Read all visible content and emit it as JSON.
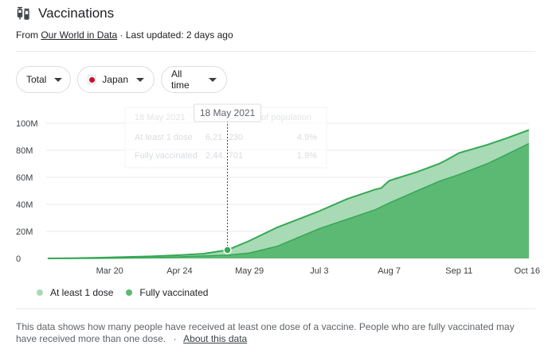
{
  "header": {
    "title": "Vaccinations",
    "source_prefix": "From",
    "source_link": "Our World in Data",
    "separator": "·",
    "last_updated": "Last updated: 2 days ago"
  },
  "filters": {
    "metric": "Total",
    "country": "Japan",
    "range": "All time"
  },
  "tooltip": {
    "date": "18 May 2021",
    "header_faded": "18 May 2021",
    "pct_header_faded": "of population",
    "rows": [
      {
        "label": "At least 1 dose",
        "value": "6,21‥230",
        "pct": "4.9%"
      },
      {
        "label": "Fully vaccinated",
        "value": "2,44‥701",
        "pct": "1.9%"
      }
    ]
  },
  "legend": {
    "dose1": "At least 1 dose",
    "full": "Fully vaccinated"
  },
  "footer": {
    "text": "This data shows how many people have received at least one dose of a vaccine. People who are fully vaccinated may have received more than one dose.",
    "separator": "·",
    "link": "About this data"
  },
  "colors": {
    "dose1_fill": "#a8dab5",
    "full_fill": "#5bb974",
    "line": "#34a853",
    "grid": "#e8eaed",
    "text_muted": "#5f6368"
  },
  "chart_data": {
    "type": "area",
    "ylim": [
      0,
      100000000
    ],
    "y_ticks": [
      {
        "label": "0",
        "value": 0
      },
      {
        "label": "20M",
        "value": 20000000
      },
      {
        "label": "40M",
        "value": 40000000
      },
      {
        "label": "60M",
        "value": 60000000
      },
      {
        "label": "80M",
        "value": 80000000
      },
      {
        "label": "100M",
        "value": 100000000
      }
    ],
    "xlim": [
      "2021-02-17",
      "2021-10-16"
    ],
    "x_ticks": [
      {
        "label": "Mar 20",
        "date": "2021-03-20"
      },
      {
        "label": "Apr 24",
        "date": "2021-04-24"
      },
      {
        "label": "May 29",
        "date": "2021-05-29"
      },
      {
        "label": "Jul 3",
        "date": "2021-07-03"
      },
      {
        "label": "Aug 7",
        "date": "2021-08-07"
      },
      {
        "label": "Sep 11",
        "date": "2021-09-11"
      },
      {
        "label": "Oct 16",
        "date": "2021-10-16"
      }
    ],
    "highlight": {
      "date": "2021-05-18",
      "value": 6210230
    },
    "series": [
      {
        "name": "At least 1 dose",
        "x": [
          "2021-02-17",
          "2021-03-01",
          "2021-03-20",
          "2021-04-10",
          "2021-04-24",
          "2021-05-06",
          "2021-05-18",
          "2021-05-29",
          "2021-06-12",
          "2021-07-03",
          "2021-07-17",
          "2021-07-31",
          "2021-08-03",
          "2021-08-07",
          "2021-08-21",
          "2021-09-01",
          "2021-09-05",
          "2021-09-11",
          "2021-09-25",
          "2021-10-05",
          "2021-10-16"
        ],
        "values": [
          0,
          200000,
          700000,
          1500000,
          2400000,
          3500000,
          6210230,
          13000000,
          23000000,
          35000000,
          44000000,
          51000000,
          52000000,
          57500000,
          64000000,
          70000000,
          73000000,
          78000000,
          84000000,
          89000000,
          95000000
        ]
      },
      {
        "name": "Fully vaccinated",
        "x": [
          "2021-02-17",
          "2021-03-10",
          "2021-04-10",
          "2021-04-24",
          "2021-05-06",
          "2021-05-18",
          "2021-05-29",
          "2021-06-12",
          "2021-07-03",
          "2021-07-17",
          "2021-07-31",
          "2021-08-07",
          "2021-08-21",
          "2021-09-01",
          "2021-09-11",
          "2021-09-25",
          "2021-10-05",
          "2021-10-16"
        ],
        "values": [
          0,
          0,
          400000,
          1200000,
          1800000,
          2440701,
          4000000,
          9000000,
          22000000,
          29000000,
          36000000,
          41000000,
          50000000,
          57000000,
          62000000,
          70000000,
          77000000,
          85000000
        ]
      }
    ]
  }
}
